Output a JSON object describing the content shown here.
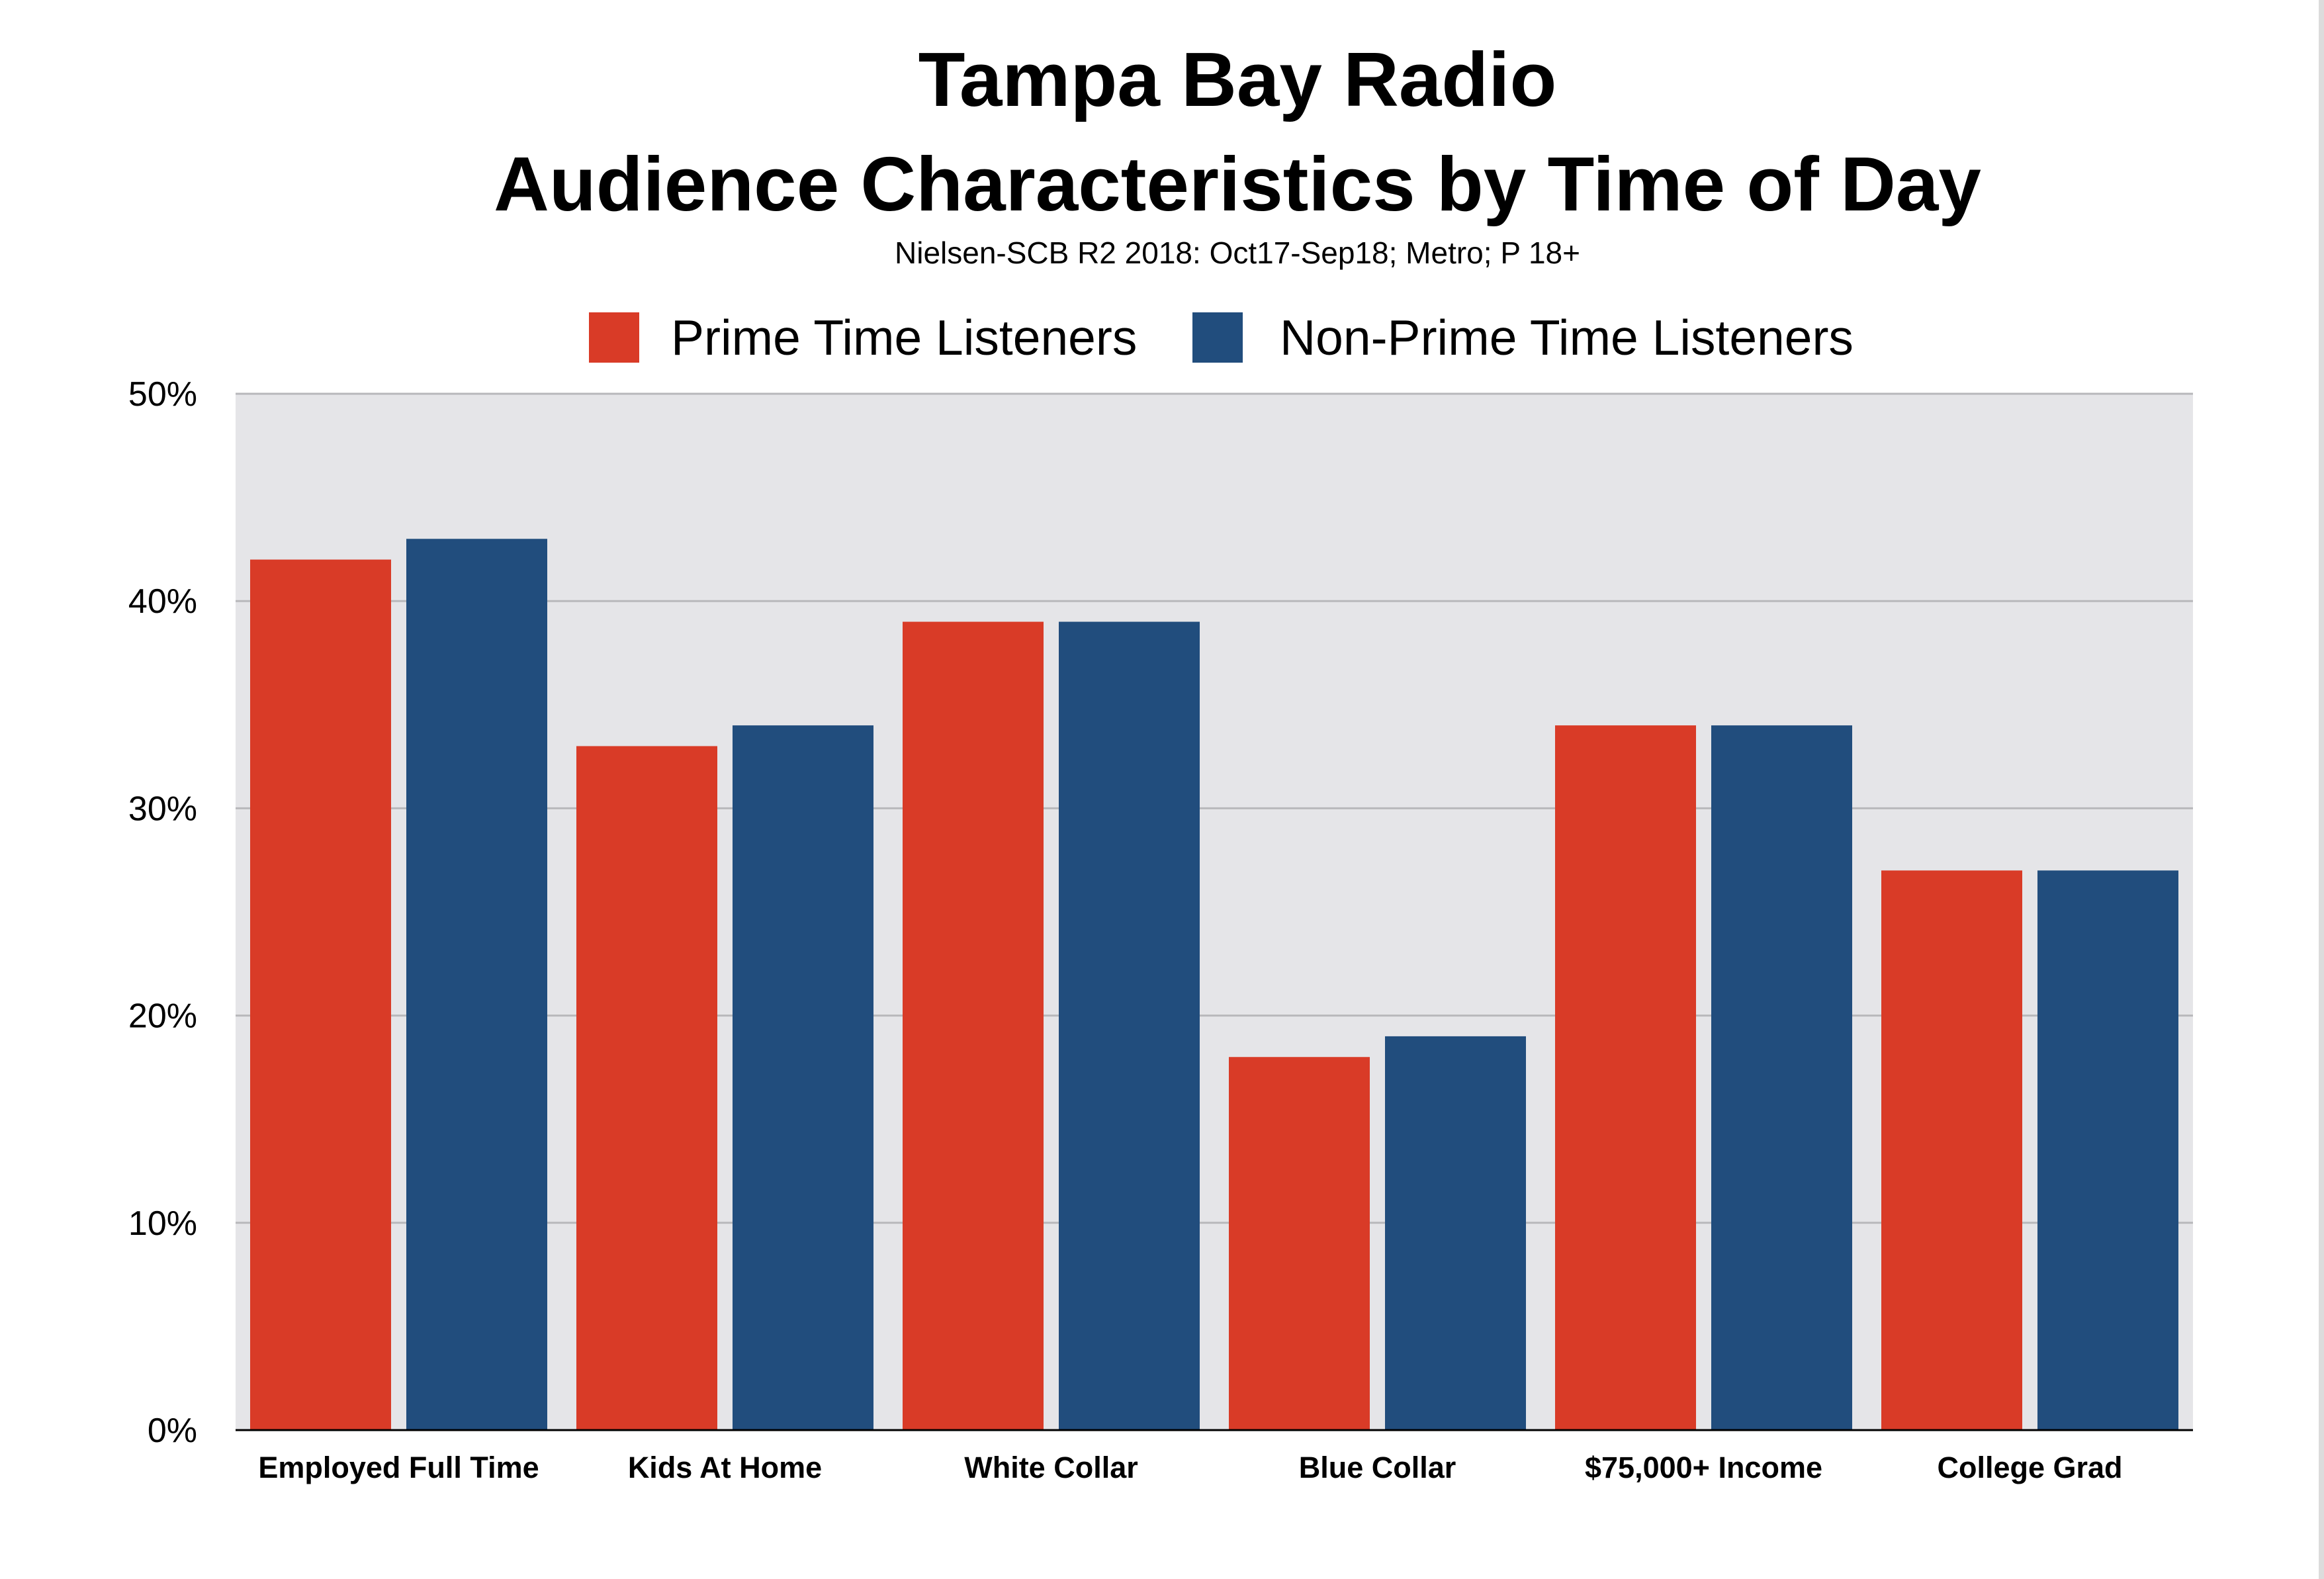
{
  "chart_data": {
    "type": "bar",
    "title_lines": [
      "Tampa Bay Radio",
      "Audience Characteristics by Time of Day"
    ],
    "subtitle": "Nielsen-SCB R2 2018: Oct17-Sep18; Metro; P 18+",
    "categories": [
      "Employed Full Time",
      "Kids At Home",
      "White Collar",
      "Blue Collar",
      "$75,000+ Income",
      "College Grad"
    ],
    "series": [
      {
        "name": "Prime Time Listeners",
        "color": "#d93b27",
        "values": [
          42,
          33,
          39,
          18,
          34,
          27
        ]
      },
      {
        "name": "Non-Prime Time Listeners",
        "color": "#214d7d",
        "values": [
          43,
          34,
          39,
          19,
          34,
          27
        ]
      }
    ],
    "y_ticks": [
      "0%",
      "10%",
      "20%",
      "30%",
      "40%",
      "50%"
    ],
    "ylim": [
      0,
      50
    ],
    "grid": true,
    "legend_position": "top-center",
    "plot_background": "#e5e5e8",
    "gridline_color": "#b8b8bb"
  }
}
